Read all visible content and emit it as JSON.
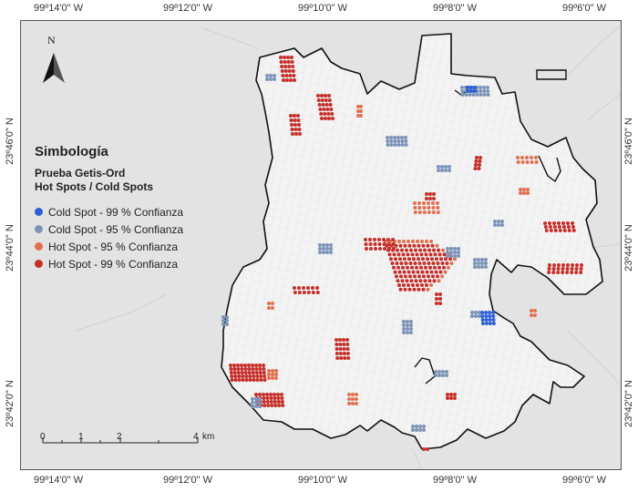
{
  "map": {
    "longitude_labels": [
      "99º14'0\" W",
      "99º12'0\" W",
      "99º10'0\" W",
      "99º8'0\" W",
      "99º6'0\" W"
    ],
    "latitude_labels": [
      "23º46'0\" N",
      "23º44'0\" N",
      "23º42'0\" N"
    ],
    "north_arrow_label": "N",
    "legend": {
      "title": "Simbología",
      "subtitle_line1": "Prueba Getis-Ord",
      "subtitle_line2": "Hot Spots / Cold Spots",
      "items": [
        {
          "label": "Cold Spot - 99 % Confianza",
          "color": "#2f5fd6"
        },
        {
          "label": "Cold Spot - 95 % Confianza",
          "color": "#7d94b8"
        },
        {
          "label": "Hot Spot - 95 % Confianza",
          "color": "#e07050"
        },
        {
          "label": "Hot Spot - 99 % Confianza",
          "color": "#c62f2a"
        }
      ]
    },
    "scale": {
      "labels": [
        "0",
        "1",
        "2",
        "4"
      ],
      "unit": "km"
    },
    "colors": {
      "background": "#e3e3e3",
      "city": "#f2f2f2",
      "boundary": "#111111"
    }
  }
}
